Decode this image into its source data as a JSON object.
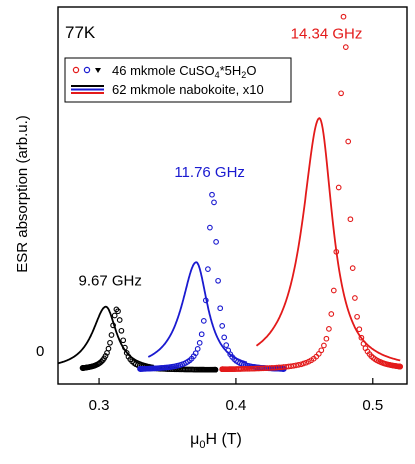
{
  "chart_data": {
    "type": "scatter",
    "temperature_label": "77K",
    "ylabel": "ESR absorption (arb.u.)",
    "xlabel_main": "μ",
    "xlabel_sub": "0",
    "xlabel_rest": "H (T)",
    "xlim": [
      0.27,
      0.525
    ],
    "ylim": [
      -0.12,
      3.1
    ],
    "x_ticks": [
      "0.3",
      "0.4",
      "0.5"
    ],
    "x_tick_values": [
      0.3,
      0.4,
      0.5
    ],
    "y_zero_label": "0",
    "legend": {
      "reference_label_main": "46 mkmole CuSO",
      "reference_label_sub": "4",
      "reference_label_rest": "*5H",
      "reference_label_sub2": "2",
      "reference_label_end": "O",
      "sample_label": "62 mkmole nabokoite, x10"
    },
    "frequency_labels": [
      {
        "text": "9.67 GHz",
        "color": "#000000",
        "x": 0.285,
        "y": 0.72
      },
      {
        "text": "11.76 GHz",
        "color": "#1a1ad0",
        "x": 0.355,
        "y": 1.65
      },
      {
        "text": "14.34 GHz",
        "color": "#e31a1a",
        "x": 0.44,
        "y": 2.83
      }
    ],
    "series": [
      {
        "frequency": "9.67 GHz",
        "kind": "reference",
        "color": "#000000",
        "center": 0.313,
        "width": 0.0045,
        "height": 0.52,
        "range": [
          0.288,
          0.385
        ]
      },
      {
        "frequency": "9.67 GHz",
        "kind": "sample",
        "color": "#000000",
        "center": 0.305,
        "width": 0.012,
        "height": 0.54,
        "range": [
          0.27,
          0.34
        ]
      },
      {
        "frequency": "11.76 GHz",
        "kind": "reference",
        "color": "#1a1ad0",
        "center": 0.383,
        "width": 0.004,
        "height": 1.52,
        "range": [
          0.33,
          0.435
        ]
      },
      {
        "frequency": "11.76 GHz",
        "kind": "sample",
        "color": "#1a1ad0",
        "center": 0.371,
        "width": 0.013,
        "height": 0.92,
        "range": [
          0.336,
          0.408
        ]
      },
      {
        "frequency": "14.34 GHz",
        "kind": "reference",
        "color": "#e31a1a",
        "center": 0.479,
        "width": 0.004,
        "height": 3.05,
        "range": [
          0.39,
          0.52
        ]
      },
      {
        "frequency": "14.34 GHz",
        "kind": "sample",
        "color": "#e31a1a",
        "center": 0.461,
        "width": 0.015,
        "height": 2.15,
        "range": [
          0.415,
          0.52
        ]
      }
    ]
  }
}
